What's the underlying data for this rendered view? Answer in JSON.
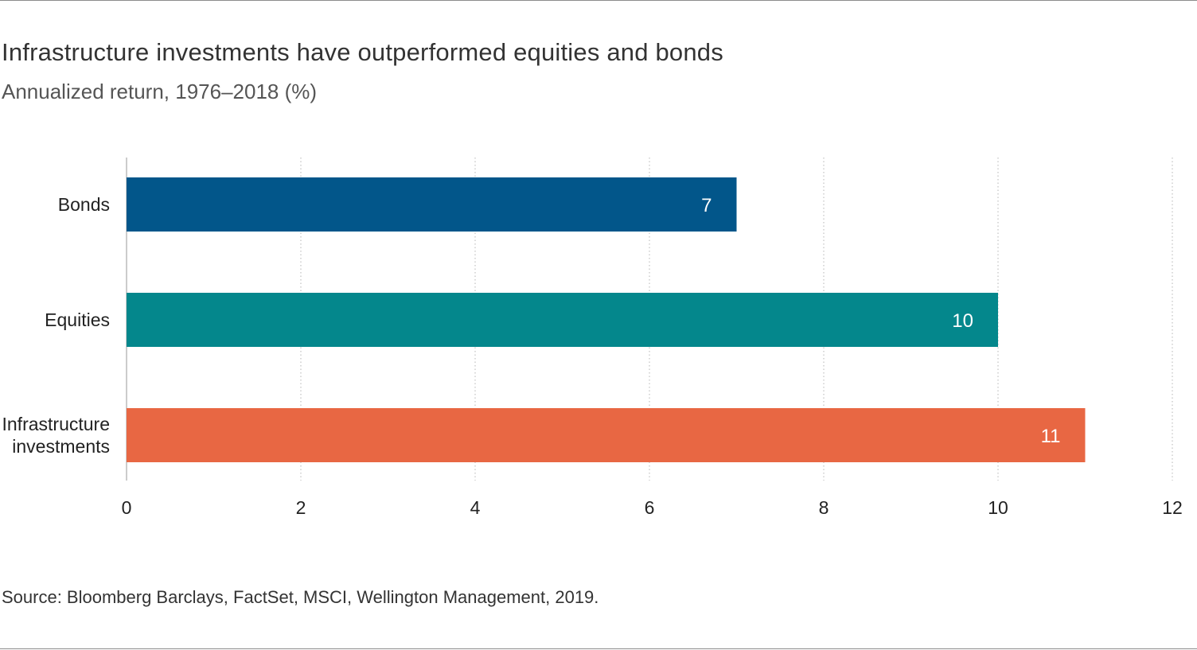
{
  "header": {
    "title": "Infrastructure investments have outperformed equities and bonds",
    "subtitle": "Annualized return, 1976–2018 (%)"
  },
  "footer": {
    "source": "Source: Bloomberg Barclays, FactSet, MSCI, Wellington Management, 2019."
  },
  "chart_data": {
    "type": "bar",
    "orientation": "horizontal",
    "title": "Infrastructure investments have outperformed equities and bonds",
    "subtitle": "Annualized return, 1976–2018 (%)",
    "categories": [
      [
        "Bonds"
      ],
      [
        "Equities"
      ],
      [
        "Infrastructure",
        "investments"
      ]
    ],
    "values": [
      7,
      10,
      11
    ],
    "value_labels": [
      "7",
      "10",
      "11"
    ],
    "bar_colors": [
      "#02568a",
      "#04878c",
      "#e86743"
    ],
    "xlim": [
      0,
      12
    ],
    "x_ticks": [
      0,
      2,
      4,
      6,
      8,
      10,
      12
    ],
    "grid": "vertical dotted",
    "legend": "none"
  }
}
